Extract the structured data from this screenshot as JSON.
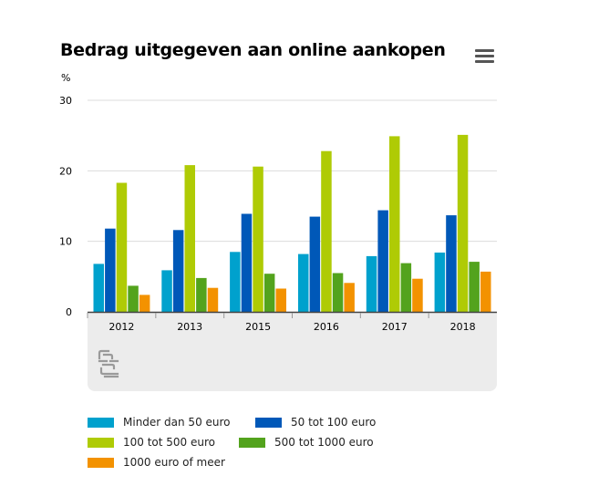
{
  "chart_data": {
    "type": "bar",
    "title": "Bedrag uitgegeven aan online aankopen",
    "ylabel": "%",
    "ylim": [
      0,
      30
    ],
    "yticks": [
      0,
      10,
      20,
      30
    ],
    "categories": [
      "2012",
      "2013",
      "2015",
      "2016",
      "2017",
      "2018"
    ],
    "series": [
      {
        "name": "Minder dan 50 euro",
        "color": "#00a1cd",
        "values": [
          6.8,
          5.9,
          8.5,
          8.2,
          7.9,
          8.4
        ]
      },
      {
        "name": "50 tot 100 euro",
        "color": "#0058b8",
        "values": [
          11.8,
          11.6,
          13.9,
          13.5,
          14.4,
          13.7
        ]
      },
      {
        "name": "100 tot 500 euro",
        "color": "#afcb05",
        "values": [
          18.3,
          20.8,
          20.6,
          22.8,
          24.9,
          25.1
        ]
      },
      {
        "name": "500 tot 1000 euro",
        "color": "#53a31d",
        "values": [
          3.7,
          4.8,
          5.4,
          5.5,
          6.9,
          7.1
        ]
      },
      {
        "name": "1000 euro of meer",
        "color": "#f39200",
        "values": [
          2.4,
          3.4,
          3.3,
          4.1,
          4.7,
          5.7
        ]
      }
    ],
    "grid": true,
    "legend_position": "bottom"
  },
  "logo_icon": "cbs-logo-icon",
  "menu_icon": "hamburger-menu-icon"
}
